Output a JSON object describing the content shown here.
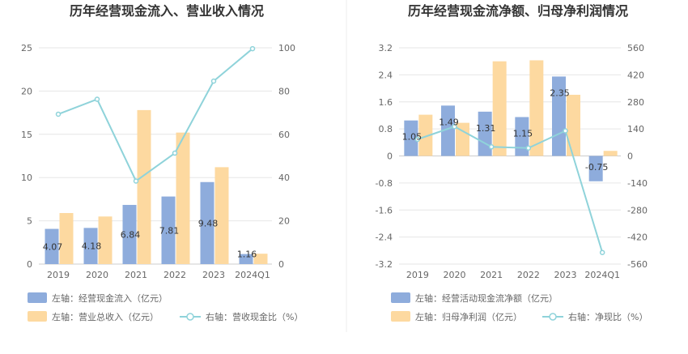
{
  "colors": {
    "bar_primary": "#8eacdc",
    "bar_secondary": "#fdd9a0",
    "line": "#8fd3da",
    "grid": "#e6e6e6",
    "divider": "#eeeeee",
    "axis_text": "#666666",
    "title_text": "#333333"
  },
  "chart_data": [
    {
      "type": "bar",
      "title": "历年经营现金流入、营业收入情况",
      "categories": [
        "2019",
        "2020",
        "2021",
        "2022",
        "2023",
        "2024Q1"
      ],
      "y_left": {
        "min": 0,
        "max": 25,
        "ticks": [
          "0",
          "5",
          "10",
          "15",
          "20",
          "25"
        ]
      },
      "y_right": {
        "min": 0,
        "max": 100,
        "ticks": [
          "0",
          "20",
          "40",
          "60",
          "80",
          "100"
        ]
      },
      "series": [
        {
          "name": "左轴：经营现金流入（亿元）",
          "kind": "bar",
          "axis": "left",
          "values": [
            4.07,
            4.18,
            6.84,
            7.81,
            9.48,
            1.16
          ],
          "labels": [
            "4.07",
            "4.18",
            "6.84",
            "7.81",
            "9.48",
            "1.16"
          ]
        },
        {
          "name": "左轴：营业总收入（亿元）",
          "kind": "bar",
          "axis": "left",
          "values": [
            5.9,
            5.5,
            17.8,
            15.2,
            11.2,
            1.2
          ]
        },
        {
          "name": "右轴：营收现金比（%）",
          "kind": "line",
          "axis": "right",
          "values": [
            69.3,
            76.2,
            38.4,
            51.3,
            84.6,
            99.6
          ]
        }
      ]
    },
    {
      "type": "bar",
      "title": "历年经营现金流净额、归母净利润情况",
      "categories": [
        "2019",
        "2020",
        "2021",
        "2022",
        "2023",
        "2024Q1"
      ],
      "y_left": {
        "min": -3.2,
        "max": 3.2,
        "ticks": [
          "-3.2",
          "-2.4",
          "-1.6",
          "-0.8",
          "0",
          "0.8",
          "1.6",
          "2.4",
          "3.2"
        ]
      },
      "y_right": {
        "min": -560,
        "max": 560,
        "ticks": [
          "-560",
          "-420",
          "-280",
          "-140",
          "0",
          "140",
          "280",
          "420",
          "560"
        ]
      },
      "series": [
        {
          "name": "左轴：经营活动现金流净额（亿元）",
          "kind": "bar",
          "axis": "left",
          "values": [
            1.05,
            1.49,
            1.31,
            1.15,
            2.35,
            -0.75
          ],
          "labels": [
            "1.05",
            "1.49",
            "1.31",
            "1.15",
            "2.35",
            "-0.75"
          ]
        },
        {
          "name": "左轴：归母净利润（亿元）",
          "kind": "bar",
          "axis": "left",
          "values": [
            1.22,
            0.98,
            2.8,
            2.83,
            1.81,
            0.15
          ]
        },
        {
          "name": "右轴：净现比（%）",
          "kind": "line",
          "axis": "right",
          "values": [
            86,
            152,
            47,
            41,
            130,
            -500
          ]
        }
      ]
    }
  ]
}
